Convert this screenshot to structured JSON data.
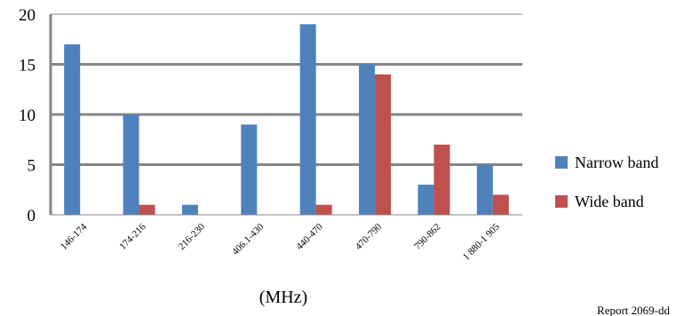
{
  "chart_data": {
    "type": "bar",
    "categories": [
      "146-174",
      "174-216",
      "216-230",
      "406.1-430",
      "440-470",
      "470-790",
      "790-862",
      "1 880-1 905"
    ],
    "series": [
      {
        "name": "Narrow band",
        "values": [
          17,
          10,
          1,
          9,
          19,
          15,
          3,
          5
        ]
      },
      {
        "name": "Wide band",
        "values": [
          0,
          1,
          0,
          0,
          1,
          14,
          7,
          2
        ]
      }
    ],
    "yticks": [
      "0",
      "5",
      "10",
      "15",
      "20"
    ],
    "ylim": [
      0,
      20
    ],
    "xlabel": "(MHz)",
    "ylabel": "",
    "legend": "right",
    "grid": true,
    "colors": {
      "Narrow band": "#4F81BD",
      "Wide band": "#C0504D"
    }
  },
  "footer": {
    "report": "Report 2069-dd"
  }
}
